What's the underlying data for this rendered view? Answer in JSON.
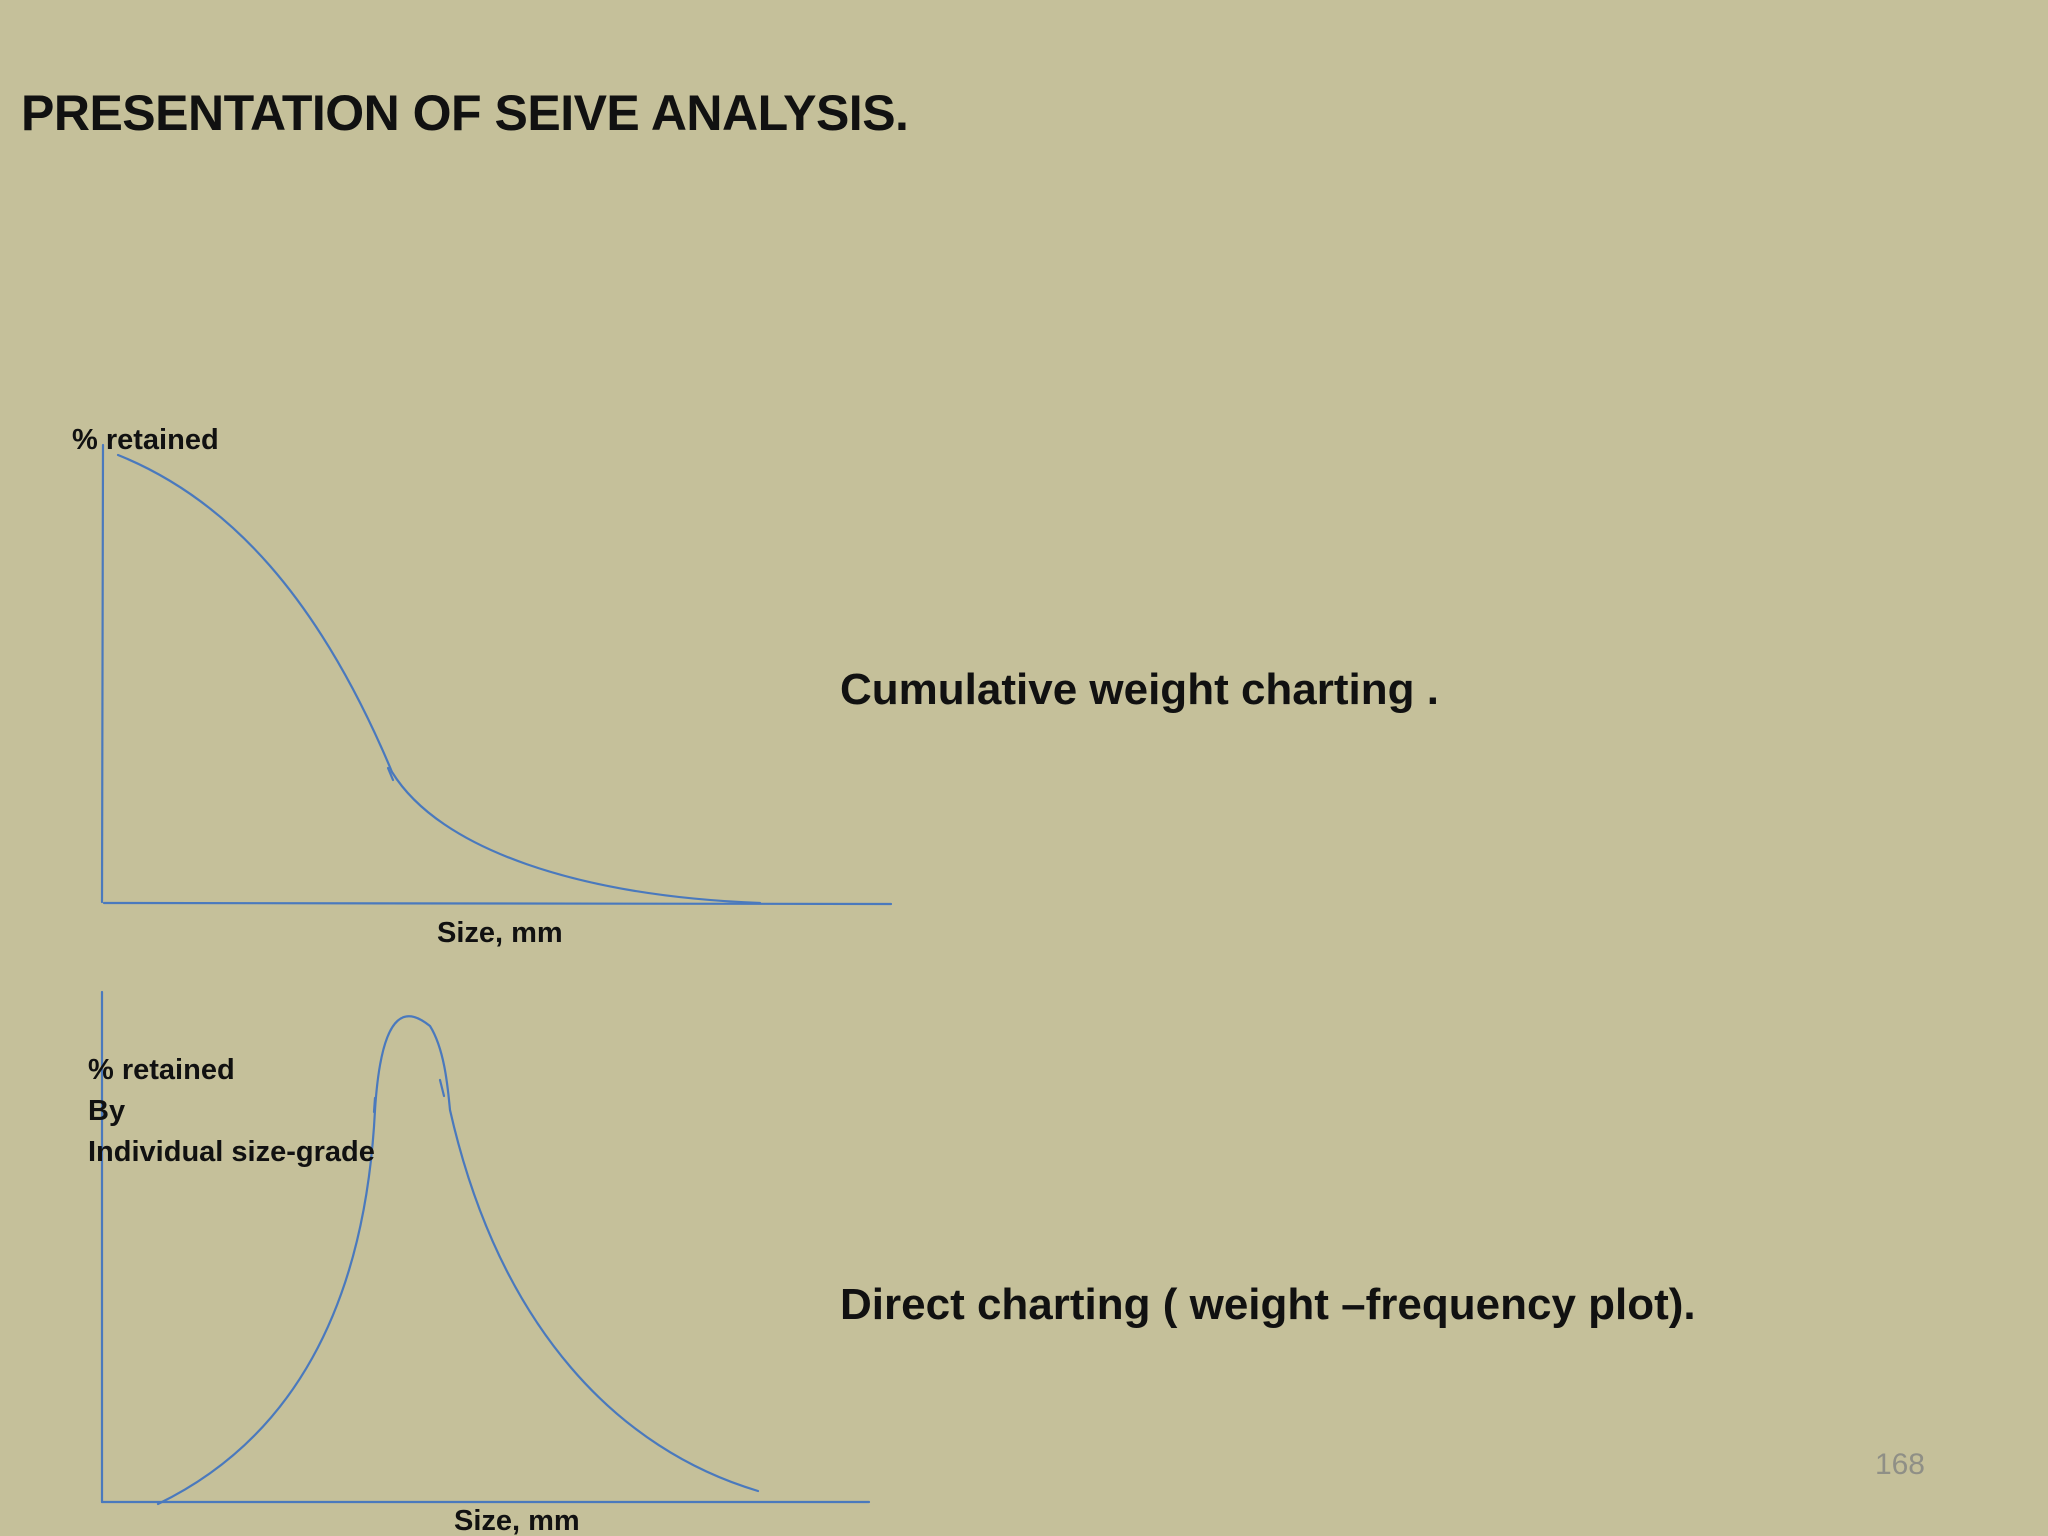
{
  "slide": {
    "title": "PRESENTATION OF SEIVE ANALYSIS.",
    "page_number": "168"
  },
  "diagram_top": {
    "caption": "Cumulative weight charting .",
    "y_label": "% retained",
    "x_label": "Size, mm"
  },
  "diagram_bottom": {
    "caption": "Direct charting  ( weight –frequency plot).",
    "y_label_lines": [
      "% retained",
      "By",
      "Individual size-grade"
    ],
    "x_label": "Size, mm"
  },
  "colors": {
    "background": "#c5c09a",
    "line": "#4a79bd",
    "text": "#111111",
    "page_number": "#8f8f86"
  }
}
